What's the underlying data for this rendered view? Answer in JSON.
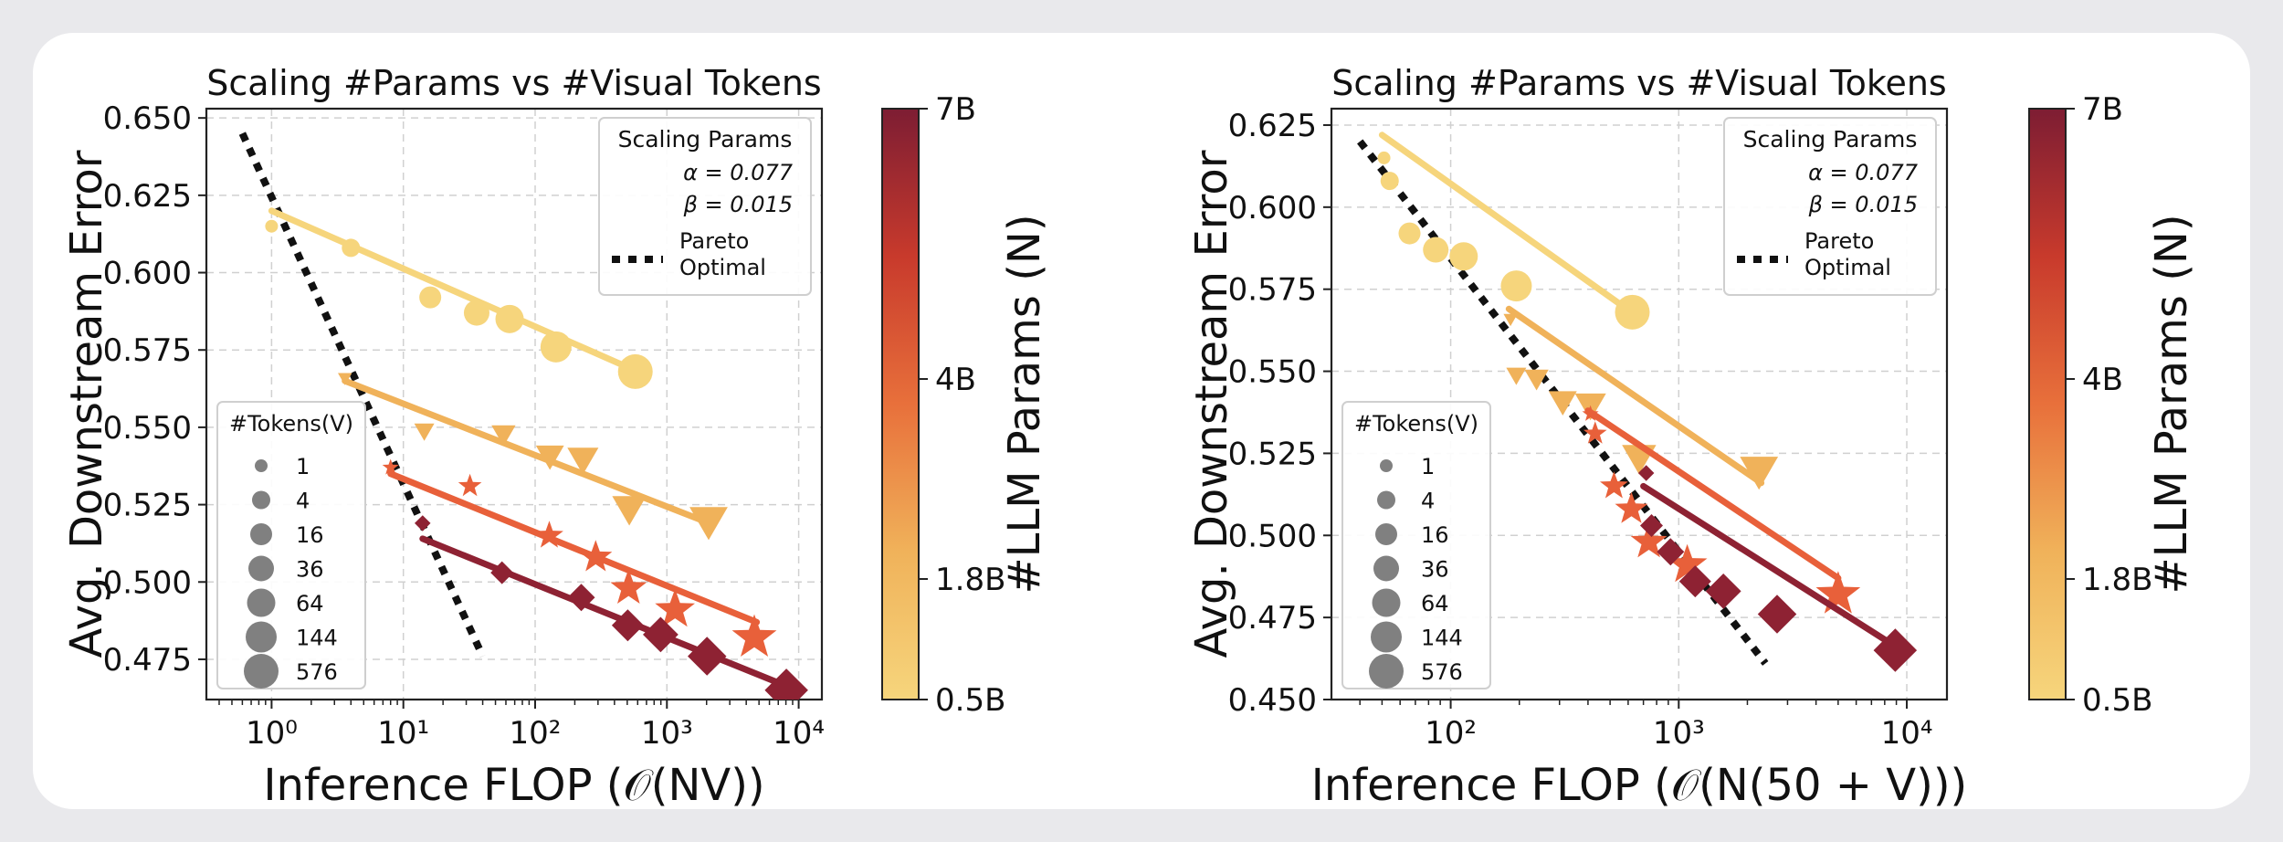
{
  "colormap": {
    "label": "#LLM Params (N)",
    "ticks": [
      "7B",
      "4B",
      "1.8B",
      "0.5B"
    ],
    "colors": [
      "#f6d57c",
      "#f0b25a",
      "#e8703b",
      "#c83a2c",
      "#7d1d33"
    ]
  },
  "chart_data": [
    {
      "type": "scatter",
      "title": "Scaling #Params vs #Visual Tokens",
      "xlabel": "Inference FLOP (𝒪(NV))",
      "ylabel": "Avg. Downstream Error",
      "xscale": "log",
      "xlim": [
        0.32,
        15000
      ],
      "ylim": [
        0.462,
        0.653
      ],
      "yticks": [
        "0.475",
        "0.500",
        "0.525",
        "0.550",
        "0.575",
        "0.600",
        "0.625",
        "0.650"
      ],
      "xticks": [
        "10⁰",
        "10¹",
        "10²",
        "10³",
        "10⁴"
      ],
      "grid": true,
      "annotation_box": {
        "position": "top-right",
        "title": "Scaling Params",
        "alpha": "α = 0.077",
        "beta": "β = 0.015",
        "pareto": "Pareto Optimal"
      },
      "size_legend": {
        "position": "bottom-left",
        "title": "#Tokens(V)",
        "items": [
          "1",
          "4",
          "16",
          "36",
          "64",
          "144",
          "576"
        ]
      },
      "series": [
        {
          "params": "0.5B",
          "marker": "circle",
          "color": "#f6d57c",
          "x": [
            1,
            4,
            16,
            36,
            64,
            144,
            576
          ],
          "y": [
            0.615,
            0.608,
            0.592,
            0.587,
            0.585,
            0.576,
            0.568
          ],
          "fit": [
            [
              1,
              0.62
            ],
            [
              600,
              0.568
            ]
          ]
        },
        {
          "params": "1.8B",
          "marker": "triangle",
          "color": "#f0b25a",
          "x": [
            3.6,
            14.4,
            57.6,
            129.6,
            230.4,
            518.4,
            2073.6
          ],
          "y": [
            0.566,
            0.549,
            0.548,
            0.541,
            0.54,
            0.524,
            0.52
          ],
          "fit": [
            [
              3.6,
              0.565
            ],
            [
              2100,
              0.519
            ]
          ]
        },
        {
          "params": "4B",
          "marker": "star",
          "color": "#e8603a",
          "x": [
            8,
            32,
            128,
            288,
            512,
            1152,
            4608
          ],
          "y": [
            0.537,
            0.531,
            0.515,
            0.508,
            0.498,
            0.491,
            0.482
          ],
          "fit": [
            [
              8,
              0.535
            ],
            [
              4800,
              0.487
            ]
          ]
        },
        {
          "params": "7B",
          "marker": "diamond",
          "color": "#8e2233",
          "x": [
            14,
            56,
            224,
            504,
            896,
            2016,
            8064
          ],
          "y": [
            0.519,
            0.503,
            0.495,
            0.486,
            0.483,
            0.476,
            0.465
          ],
          "fit": [
            [
              14,
              0.514
            ],
            [
              8500,
              0.466
            ]
          ]
        }
      ],
      "pareto_line": {
        "x": [
          0.6,
          40
        ],
        "y": [
          0.645,
          0.476
        ]
      }
    },
    {
      "type": "scatter",
      "title": "Scaling #Params vs #Visual Tokens",
      "xlabel": "Inference FLOP (𝒪(N(50 + V)))",
      "ylabel": "Avg. Downstream Error",
      "xscale": "log",
      "xlim": [
        30,
        15000
      ],
      "ylim": [
        0.45,
        0.63
      ],
      "yticks": [
        "0.450",
        "0.475",
        "0.500",
        "0.525",
        "0.550",
        "0.575",
        "0.600",
        "0.625"
      ],
      "xticks": [
        "10²",
        "10³",
        "10⁴"
      ],
      "grid": true,
      "annotation_box": {
        "position": "top-right",
        "title": "Scaling Params",
        "alpha": "α = 0.077",
        "beta": "β = 0.015",
        "pareto": "Pareto Optimal"
      },
      "size_legend": {
        "position": "bottom-left",
        "title": "#Tokens(V)",
        "items": [
          "1",
          "4",
          "16",
          "36",
          "64",
          "144",
          "576"
        ]
      },
      "series": [
        {
          "params": "0.5B",
          "marker": "circle",
          "color": "#f6d57c",
          "x": [
            51,
            54,
            66,
            86,
            114,
            194,
            626
          ],
          "y": [
            0.615,
            0.608,
            0.592,
            0.587,
            0.585,
            0.576,
            0.568
          ],
          "fit": [
            [
              50,
              0.622
            ],
            [
              650,
              0.567
            ]
          ]
        },
        {
          "params": "1.8B",
          "marker": "triangle",
          "color": "#f0b25a",
          "x": [
            183,
            194,
            238,
            310,
            410,
            670,
            2250
          ],
          "y": [
            0.566,
            0.549,
            0.548,
            0.541,
            0.54,
            0.524,
            0.52
          ],
          "fit": [
            [
              180,
              0.569
            ],
            [
              2300,
              0.516
            ]
          ]
        },
        {
          "params": "4B",
          "marker": "star",
          "color": "#e8603a",
          "x": [
            410,
            430,
            520,
            620,
            740,
            1090,
            5000
          ],
          "y": [
            0.537,
            0.531,
            0.515,
            0.508,
            0.498,
            0.491,
            0.482
          ],
          "fit": [
            [
              400,
              0.538
            ],
            [
              5000,
              0.487
            ]
          ]
        },
        {
          "params": "7B",
          "marker": "diamond",
          "color": "#8e2233",
          "x": [
            720,
            760,
            920,
            1180,
            1570,
            2700,
            8900
          ],
          "y": [
            0.519,
            0.503,
            0.495,
            0.486,
            0.483,
            0.476,
            0.465
          ],
          "fit": [
            [
              700,
              0.515
            ],
            [
              9000,
              0.466
            ]
          ]
        }
      ],
      "pareto_line": {
        "x": [
          40,
          2400
        ],
        "y": [
          0.62,
          0.461
        ]
      }
    }
  ]
}
